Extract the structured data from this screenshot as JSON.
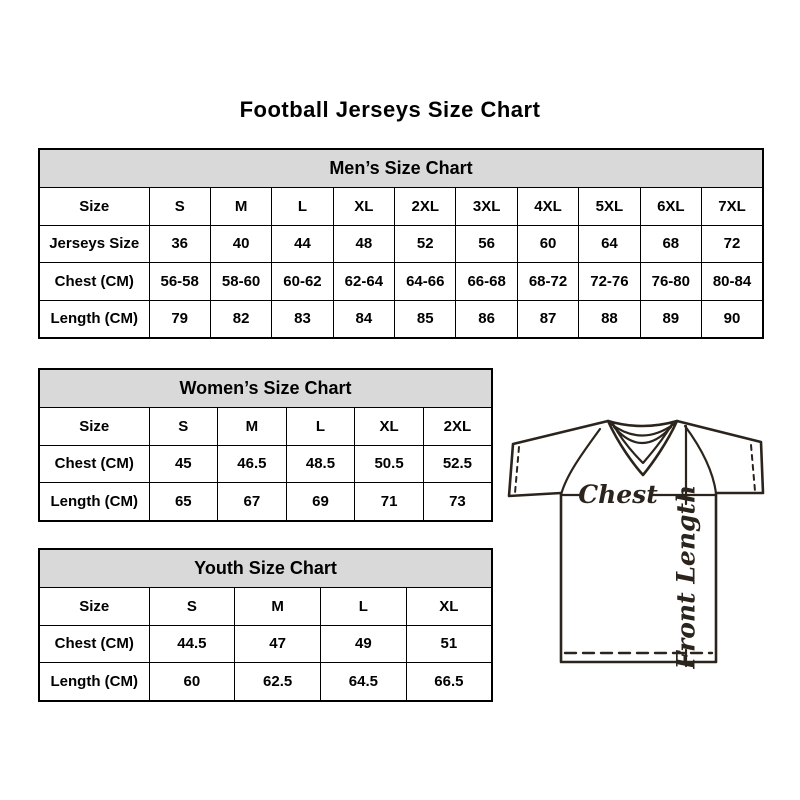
{
  "page_title": "Football Jerseys Size Chart",
  "tables": [
    {
      "title": "Men’s Size Chart",
      "rows": [
        [
          "Size",
          "S",
          "M",
          "L",
          "XL",
          "2XL",
          "3XL",
          "4XL",
          "5XL",
          "6XL",
          "7XL"
        ],
        [
          "Jerseys Size",
          "36",
          "40",
          "44",
          "48",
          "52",
          "56",
          "60",
          "64",
          "68",
          "72"
        ],
        [
          "Chest (CM)",
          "56-58",
          "58-60",
          "60-62",
          "62-64",
          "64-66",
          "66-68",
          "68-72",
          "72-76",
          "76-80",
          "80-84"
        ],
        [
          "Length (CM)",
          "79",
          "82",
          "83",
          "84",
          "85",
          "86",
          "87",
          "88",
          "89",
          "90"
        ]
      ]
    },
    {
      "title": "Women’s Size Chart",
      "rows": [
        [
          "Size",
          "S",
          "M",
          "L",
          "XL",
          "2XL"
        ],
        [
          "Chest (CM)",
          "45",
          "46.5",
          "48.5",
          "50.5",
          "52.5"
        ],
        [
          "Length (CM)",
          "65",
          "67",
          "69",
          "71",
          "73"
        ]
      ]
    },
    {
      "title": "Youth Size Chart",
      "rows": [
        [
          "Size",
          "S",
          "M",
          "L",
          "XL"
        ],
        [
          "Chest (CM)",
          "44.5",
          "47",
          "49",
          "51"
        ],
        [
          "Length (CM)",
          "60",
          "62.5",
          "64.5",
          "66.5"
        ]
      ]
    }
  ],
  "diagram": {
    "chest_label": "Chest",
    "front_length_label": "Front Length"
  },
  "colors": {
    "table_header_bg": "#d9d9d9",
    "table_border": "#000000",
    "jersey_line": "#2b241d",
    "text": "#000000"
  }
}
